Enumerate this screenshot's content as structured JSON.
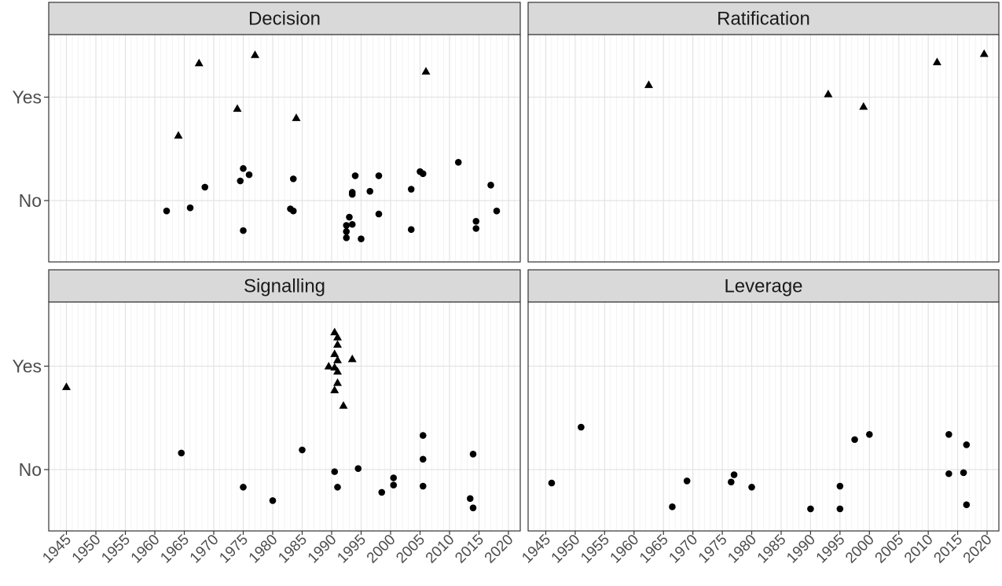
{
  "chart_data": {
    "type": "scatter",
    "layout": "facet-2x2",
    "x_ticks": [
      1945,
      1950,
      1955,
      1960,
      1965,
      1970,
      1975,
      1980,
      1985,
      1990,
      1995,
      2000,
      2005,
      2010,
      2015,
      2020
    ],
    "xlim": [
      1942,
      2022
    ],
    "y_categories": [
      "No",
      "Yes"
    ],
    "grid": true,
    "point_color": "#000000",
    "strip_color": "#d9d9d9",
    "facets": [
      {
        "title": "Decision",
        "points": [
          {
            "x": 1967.5,
            "y": 1.33,
            "shape": "triangle"
          },
          {
            "x": 1977,
            "y": 1.41,
            "shape": "triangle"
          },
          {
            "x": 2006,
            "y": 1.25,
            "shape": "triangle"
          },
          {
            "x": 1974,
            "y": 0.89,
            "shape": "triangle"
          },
          {
            "x": 1984,
            "y": 0.8,
            "shape": "triangle"
          },
          {
            "x": 1964,
            "y": 0.63,
            "shape": "triangle"
          },
          {
            "x": 1962,
            "y": -0.1,
            "shape": "circle"
          },
          {
            "x": 1966,
            "y": -0.07,
            "shape": "circle"
          },
          {
            "x": 1968.5,
            "y": 0.13,
            "shape": "circle"
          },
          {
            "x": 1975,
            "y": 0.31,
            "shape": "circle"
          },
          {
            "x": 1976,
            "y": 0.25,
            "shape": "circle"
          },
          {
            "x": 1974.5,
            "y": 0.19,
            "shape": "circle"
          },
          {
            "x": 1975,
            "y": -0.29,
            "shape": "circle"
          },
          {
            "x": 1983.5,
            "y": 0.21,
            "shape": "circle"
          },
          {
            "x": 1983,
            "y": -0.08,
            "shape": "circle"
          },
          {
            "x": 1983.5,
            "y": -0.1,
            "shape": "circle"
          },
          {
            "x": 1993,
            "y": -0.16,
            "shape": "circle"
          },
          {
            "x": 1992.5,
            "y": -0.24,
            "shape": "circle"
          },
          {
            "x": 1993.5,
            "y": -0.23,
            "shape": "circle"
          },
          {
            "x": 1992.5,
            "y": -0.3,
            "shape": "circle"
          },
          {
            "x": 1992.5,
            "y": -0.36,
            "shape": "circle"
          },
          {
            "x": 1995,
            "y": -0.37,
            "shape": "circle"
          },
          {
            "x": 1993.5,
            "y": 0.06,
            "shape": "circle"
          },
          {
            "x": 1993.5,
            "y": 0.08,
            "shape": "circle"
          },
          {
            "x": 1994,
            "y": 0.24,
            "shape": "circle"
          },
          {
            "x": 1996.5,
            "y": 0.09,
            "shape": "circle"
          },
          {
            "x": 1998,
            "y": 0.24,
            "shape": "circle"
          },
          {
            "x": 1998,
            "y": -0.13,
            "shape": "circle"
          },
          {
            "x": 2003.5,
            "y": 0.11,
            "shape": "circle"
          },
          {
            "x": 2003.5,
            "y": -0.28,
            "shape": "circle"
          },
          {
            "x": 2005,
            "y": 0.28,
            "shape": "circle"
          },
          {
            "x": 2005.5,
            "y": 0.26,
            "shape": "circle"
          },
          {
            "x": 2011.5,
            "y": 0.37,
            "shape": "circle"
          },
          {
            "x": 2014.5,
            "y": -0.2,
            "shape": "circle"
          },
          {
            "x": 2014.5,
            "y": -0.27,
            "shape": "circle"
          },
          {
            "x": 2017,
            "y": 0.15,
            "shape": "circle"
          },
          {
            "x": 2018,
            "y": -0.1,
            "shape": "circle"
          }
        ]
      },
      {
        "title": "Ratification",
        "points": [
          {
            "x": 1962.5,
            "y": 1.12,
            "shape": "triangle"
          },
          {
            "x": 1993,
            "y": 1.03,
            "shape": "triangle"
          },
          {
            "x": 1999,
            "y": 0.91,
            "shape": "triangle"
          },
          {
            "x": 2011.5,
            "y": 1.34,
            "shape": "triangle"
          },
          {
            "x": 2019.5,
            "y": 1.42,
            "shape": "triangle"
          }
        ]
      },
      {
        "title": "Signalling",
        "points": [
          {
            "x": 1945,
            "y": 0.8,
            "shape": "triangle"
          },
          {
            "x": 1990.5,
            "y": 1.33,
            "shape": "triangle"
          },
          {
            "x": 1991,
            "y": 1.28,
            "shape": "triangle"
          },
          {
            "x": 1991,
            "y": 1.21,
            "shape": "triangle"
          },
          {
            "x": 1990.5,
            "y": 1.12,
            "shape": "triangle"
          },
          {
            "x": 1991,
            "y": 1.06,
            "shape": "triangle"
          },
          {
            "x": 1990.5,
            "y": 0.99,
            "shape": "triangle"
          },
          {
            "x": 1991,
            "y": 0.95,
            "shape": "triangle"
          },
          {
            "x": 1989.5,
            "y": 1.0,
            "shape": "triangle"
          },
          {
            "x": 1991,
            "y": 0.84,
            "shape": "triangle"
          },
          {
            "x": 1990.5,
            "y": 0.77,
            "shape": "triangle"
          },
          {
            "x": 1993.5,
            "y": 1.07,
            "shape": "triangle"
          },
          {
            "x": 1992,
            "y": 0.62,
            "shape": "triangle"
          },
          {
            "x": 1964.5,
            "y": 0.16,
            "shape": "circle"
          },
          {
            "x": 1975,
            "y": -0.17,
            "shape": "circle"
          },
          {
            "x": 1980,
            "y": -0.3,
            "shape": "circle"
          },
          {
            "x": 1985,
            "y": 0.19,
            "shape": "circle"
          },
          {
            "x": 1990.5,
            "y": -0.02,
            "shape": "circle"
          },
          {
            "x": 1991,
            "y": -0.17,
            "shape": "circle"
          },
          {
            "x": 1994.5,
            "y": 0.01,
            "shape": "circle"
          },
          {
            "x": 1998.5,
            "y": -0.22,
            "shape": "circle"
          },
          {
            "x": 2000.5,
            "y": -0.08,
            "shape": "circle"
          },
          {
            "x": 2000.5,
            "y": -0.15,
            "shape": "circle"
          },
          {
            "x": 2005.5,
            "y": 0.33,
            "shape": "circle"
          },
          {
            "x": 2005.5,
            "y": 0.1,
            "shape": "circle"
          },
          {
            "x": 2005.5,
            "y": -0.16,
            "shape": "circle"
          },
          {
            "x": 2013.5,
            "y": -0.28,
            "shape": "circle"
          },
          {
            "x": 2014,
            "y": -0.37,
            "shape": "circle"
          },
          {
            "x": 2014,
            "y": 0.15,
            "shape": "circle"
          }
        ]
      },
      {
        "title": "Leverage",
        "points": [
          {
            "x": 1946,
            "y": -0.13,
            "shape": "circle"
          },
          {
            "x": 1951,
            "y": 0.41,
            "shape": "circle"
          },
          {
            "x": 1966.5,
            "y": -0.36,
            "shape": "circle"
          },
          {
            "x": 1969,
            "y": -0.11,
            "shape": "circle"
          },
          {
            "x": 1976.5,
            "y": -0.12,
            "shape": "circle"
          },
          {
            "x": 1977,
            "y": -0.05,
            "shape": "circle"
          },
          {
            "x": 1980,
            "y": -0.17,
            "shape": "circle"
          },
          {
            "x": 1990,
            "y": -0.38,
            "shape": "circle"
          },
          {
            "x": 1995,
            "y": -0.38,
            "shape": "circle"
          },
          {
            "x": 1995,
            "y": -0.16,
            "shape": "circle"
          },
          {
            "x": 1997.5,
            "y": 0.29,
            "shape": "circle"
          },
          {
            "x": 2000,
            "y": 0.34,
            "shape": "circle"
          },
          {
            "x": 2013.5,
            "y": 0.34,
            "shape": "circle"
          },
          {
            "x": 2013.5,
            "y": -0.04,
            "shape": "circle"
          },
          {
            "x": 2016,
            "y": -0.03,
            "shape": "circle"
          },
          {
            "x": 2016.5,
            "y": 0.24,
            "shape": "circle"
          },
          {
            "x": 2016.5,
            "y": -0.34,
            "shape": "circle"
          }
        ]
      }
    ]
  }
}
